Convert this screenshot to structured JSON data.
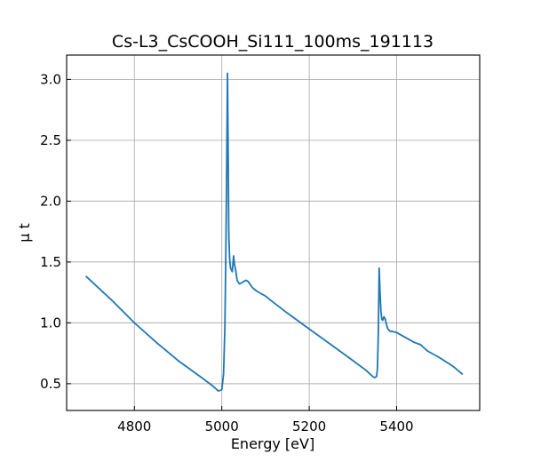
{
  "chart_data": {
    "type": "line",
    "title": "Cs-L3_CsCOOH_Si111_100ms_191113",
    "xlabel": "Energy [eV]",
    "ylabel": "μ t",
    "xlim": [
      4645,
      5590
    ],
    "ylim": [
      0.28,
      3.2
    ],
    "x_ticks": [
      4800,
      5000,
      5200,
      5400
    ],
    "y_ticks": [
      0.5,
      1.0,
      1.5,
      2.0,
      2.5,
      3.0
    ],
    "x_tick_labels": [
      "4800",
      "5000",
      "5200",
      "5400"
    ],
    "y_tick_labels": [
      "0.5",
      "1.0",
      "1.5",
      "2.0",
      "2.5",
      "3.0"
    ],
    "grid": true,
    "line_color": "#1f77b4",
    "series": [
      {
        "name": "μ t",
        "x": [
          4690,
          4750,
          4800,
          4850,
          4900,
          4950,
          4980,
          4992,
          5000,
          5004,
          5007,
          5009,
          5011,
          5013,
          5015,
          5016,
          5018,
          5020,
          5024,
          5027,
          5029,
          5031,
          5035,
          5040,
          5046,
          5055,
          5060,
          5070,
          5080,
          5100,
          5110,
          5150,
          5200,
          5250,
          5300,
          5330,
          5345,
          5350,
          5354,
          5356,
          5358,
          5360,
          5362,
          5364,
          5366,
          5368,
          5371,
          5374,
          5377,
          5380,
          5385,
          5390,
          5400,
          5420,
          5440,
          5455,
          5470,
          5500,
          5530,
          5550
        ],
        "y": [
          1.38,
          1.18,
          1.0,
          0.84,
          0.69,
          0.56,
          0.48,
          0.44,
          0.45,
          0.58,
          0.95,
          1.5,
          2.2,
          3.05,
          2.2,
          1.72,
          1.52,
          1.45,
          1.42,
          1.55,
          1.48,
          1.45,
          1.35,
          1.32,
          1.33,
          1.35,
          1.34,
          1.29,
          1.26,
          1.22,
          1.19,
          1.08,
          0.95,
          0.82,
          0.69,
          0.61,
          0.56,
          0.55,
          0.56,
          0.62,
          0.9,
          1.45,
          1.25,
          1.1,
          1.03,
          1.02,
          1.05,
          1.03,
          0.98,
          0.95,
          0.93,
          0.93,
          0.92,
          0.88,
          0.84,
          0.82,
          0.77,
          0.71,
          0.64,
          0.58
        ]
      }
    ]
  }
}
